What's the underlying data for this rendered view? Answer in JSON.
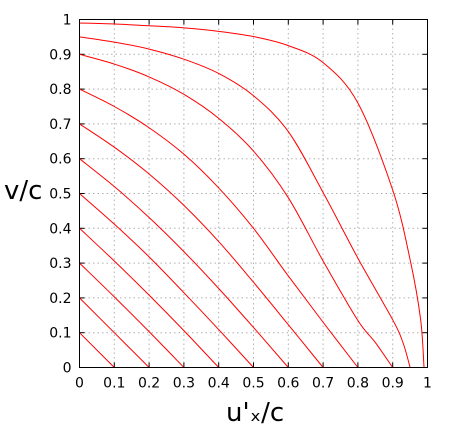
{
  "chart_data": {
    "type": "line",
    "title": "",
    "xlabel": "u'ₓ/c",
    "ylabel": "v/c",
    "xlim": [
      0,
      1
    ],
    "ylim": [
      0,
      1
    ],
    "grid": true,
    "xticks": [
      "0",
      "0.1",
      "0.2",
      "0.3",
      "0.4",
      "0.5",
      "0.6",
      "0.7",
      "0.8",
      "0.9",
      "1"
    ],
    "yticks": [
      "0",
      "0.1",
      "0.2",
      "0.3",
      "0.4",
      "0.5",
      "0.6",
      "0.7",
      "0.8",
      "0.9",
      "1"
    ],
    "series": [
      {
        "x": [
          0,
          0.1
        ],
        "y": [
          0.1,
          0
        ]
      },
      {
        "x": [
          0,
          0.1,
          0.2
        ],
        "y": [
          0.2,
          0.1,
          0
        ]
      },
      {
        "x": [
          0,
          0.1,
          0.2,
          0.3
        ],
        "y": [
          0.3,
          0.203,
          0.103,
          0
        ]
      },
      {
        "x": [
          0,
          0.1,
          0.2,
          0.3,
          0.4
        ],
        "y": [
          0.4,
          0.306,
          0.208,
          0.106,
          0
        ]
      },
      {
        "x": [
          0,
          0.1,
          0.2,
          0.3,
          0.4,
          0.5
        ],
        "y": [
          0.5,
          0.412,
          0.318,
          0.215,
          0.109,
          0
        ]
      },
      {
        "x": [
          0,
          0.1,
          0.2,
          0.3,
          0.4,
          0.5,
          0.6
        ],
        "y": [
          0.6,
          0.52,
          0.431,
          0.333,
          0.227,
          0.115,
          0
        ]
      },
      {
        "x": [
          0,
          0.1,
          0.2,
          0.3,
          0.4,
          0.5,
          0.6,
          0.7
        ],
        "y": [
          0.7,
          0.633,
          0.556,
          0.466,
          0.362,
          0.245,
          0.123,
          0
        ]
      },
      {
        "x": [
          0,
          0.1,
          0.2,
          0.3,
          0.4,
          0.5,
          0.6,
          0.7,
          0.8
        ],
        "y": [
          0.8,
          0.75,
          0.689,
          0.613,
          0.516,
          0.4,
          0.263,
          0.13,
          0
        ]
      },
      {
        "x": [
          0,
          0.1,
          0.2,
          0.3,
          0.4,
          0.5,
          0.6,
          0.7,
          0.8,
          0.85,
          0.9
        ],
        "y": [
          0.9,
          0.872,
          0.835,
          0.785,
          0.716,
          0.622,
          0.488,
          0.306,
          0.135,
          0.072,
          0
        ]
      },
      {
        "x": [
          0,
          0.1,
          0.2,
          0.3,
          0.4,
          0.5,
          0.6,
          0.7,
          0.8,
          0.9,
          0.93,
          0.95
        ],
        "y": [
          0.95,
          0.935,
          0.915,
          0.886,
          0.845,
          0.781,
          0.678,
          0.503,
          0.314,
          0.137,
          0.07,
          0
        ]
      },
      {
        "x": [
          0,
          0.1,
          0.2,
          0.3,
          0.4,
          0.5,
          0.6,
          0.7,
          0.8,
          0.9,
          0.95,
          0.98,
          0.99
        ],
        "y": [
          0.99,
          0.987,
          0.982,
          0.976,
          0.966,
          0.951,
          0.925,
          0.876,
          0.76,
          0.51,
          0.31,
          0.14,
          0
        ]
      }
    ]
  }
}
